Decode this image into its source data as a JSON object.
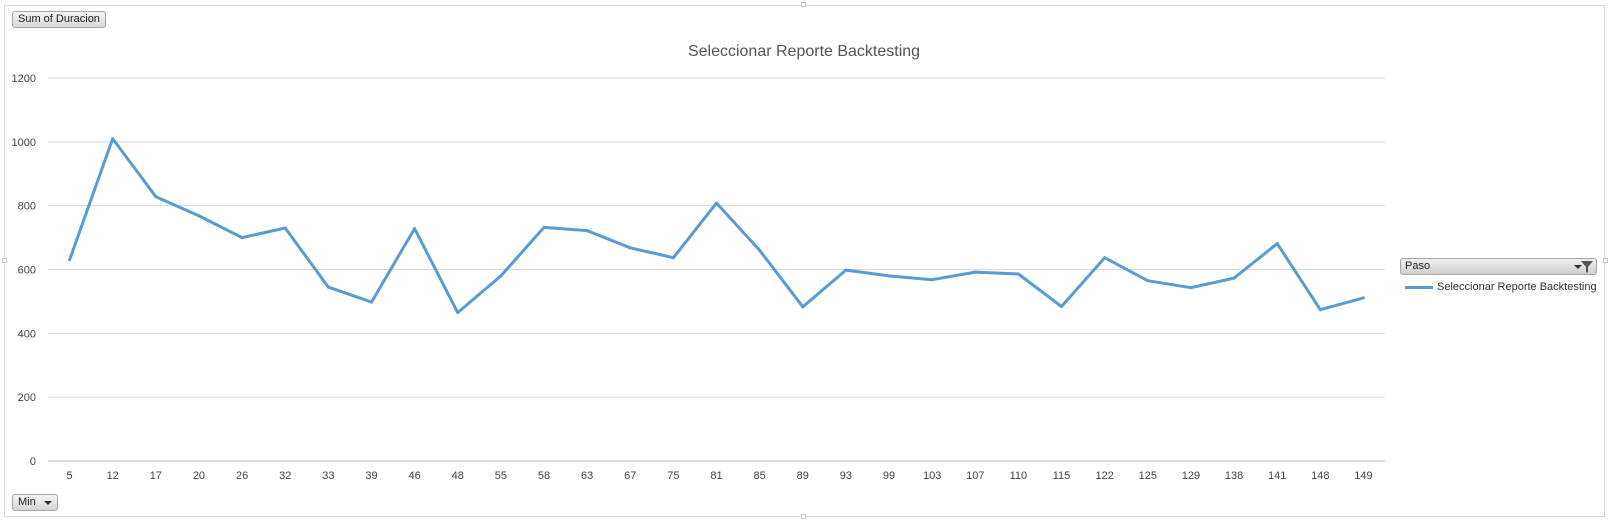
{
  "value_field_button": "Sum of Duracion",
  "axis_field_button": "Min",
  "legend": {
    "field_label": "Paso",
    "entry": "Seleccionar Reporte Backtesting"
  },
  "colors": {
    "series": "#5b9bd5",
    "gridline": "#d9d9d9"
  },
  "chart_data": {
    "type": "line",
    "title": "Seleccionar Reporte Backtesting",
    "xlabel": "",
    "ylabel": "",
    "categories": [
      "5",
      "12",
      "17",
      "20",
      "26",
      "32",
      "33",
      "39",
      "46",
      "48",
      "55",
      "58",
      "63",
      "67",
      "75",
      "81",
      "85",
      "89",
      "93",
      "99",
      "103",
      "107",
      "110",
      "115",
      "122",
      "125",
      "129",
      "138",
      "141",
      "148",
      "149"
    ],
    "series": [
      {
        "name": "Seleccionar Reporte Backtesting",
        "values": [
          630,
          1010,
          828,
          768,
          700,
          730,
          545,
          498,
          728,
          465,
          580,
          732,
          722,
          668,
          637,
          808,
          660,
          483,
          598,
          580,
          568,
          592,
          586,
          484,
          637,
          565,
          543,
          573,
          681,
          474,
          511
        ]
      }
    ],
    "ylim": [
      0,
      1200
    ],
    "yticks": [
      0,
      200,
      400,
      600,
      800,
      1000,
      1200
    ],
    "grid": true,
    "legend_position": "right"
  }
}
